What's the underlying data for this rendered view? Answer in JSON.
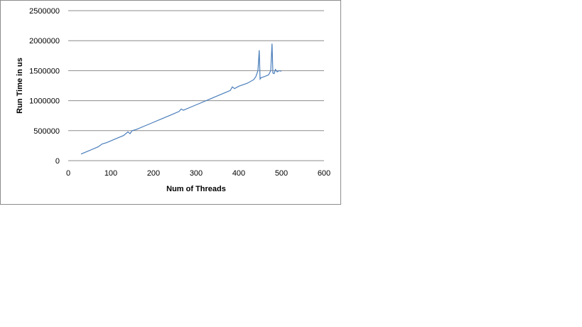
{
  "chart_data": {
    "type": "line",
    "title": "",
    "xlabel": "Num of Threads",
    "ylabel": "Run Time in us",
    "xlim": [
      0,
      600
    ],
    "ylim": [
      0,
      2500000
    ],
    "x_ticks": [
      "0",
      "100",
      "200",
      "300",
      "400",
      "500",
      "600"
    ],
    "y_ticks": [
      "0",
      "500000",
      "1000000",
      "1500000",
      "2000000",
      "2500000"
    ],
    "grid": "horizontal",
    "legend": "none",
    "series_color": "#4a7ebb",
    "series": [
      {
        "x": [
          30,
          50,
          70,
          80,
          90,
          110,
          130,
          140,
          145,
          150,
          160,
          180,
          200,
          220,
          240,
          260,
          265,
          270,
          290,
          310,
          330,
          350,
          360,
          370,
          380,
          385,
          390,
          400,
          420,
          435,
          440,
          445,
          448,
          450,
          452,
          455,
          460,
          470,
          475,
          478,
          480,
          483,
          486,
          490,
          495,
          500
        ],
        "y": [
          110000,
          170000,
          230000,
          280000,
          300000,
          360000,
          420000,
          480000,
          450000,
          500000,
          520000,
          580000,
          640000,
          700000,
          760000,
          820000,
          860000,
          840000,
          900000,
          960000,
          1020000,
          1080000,
          1110000,
          1140000,
          1170000,
          1230000,
          1200000,
          1240000,
          1290000,
          1350000,
          1400000,
          1500000,
          1840000,
          1360000,
          1380000,
          1390000,
          1400000,
          1430000,
          1500000,
          1950000,
          1460000,
          1450000,
          1520000,
          1480000,
          1500000,
          1490000
        ]
      }
    ]
  }
}
